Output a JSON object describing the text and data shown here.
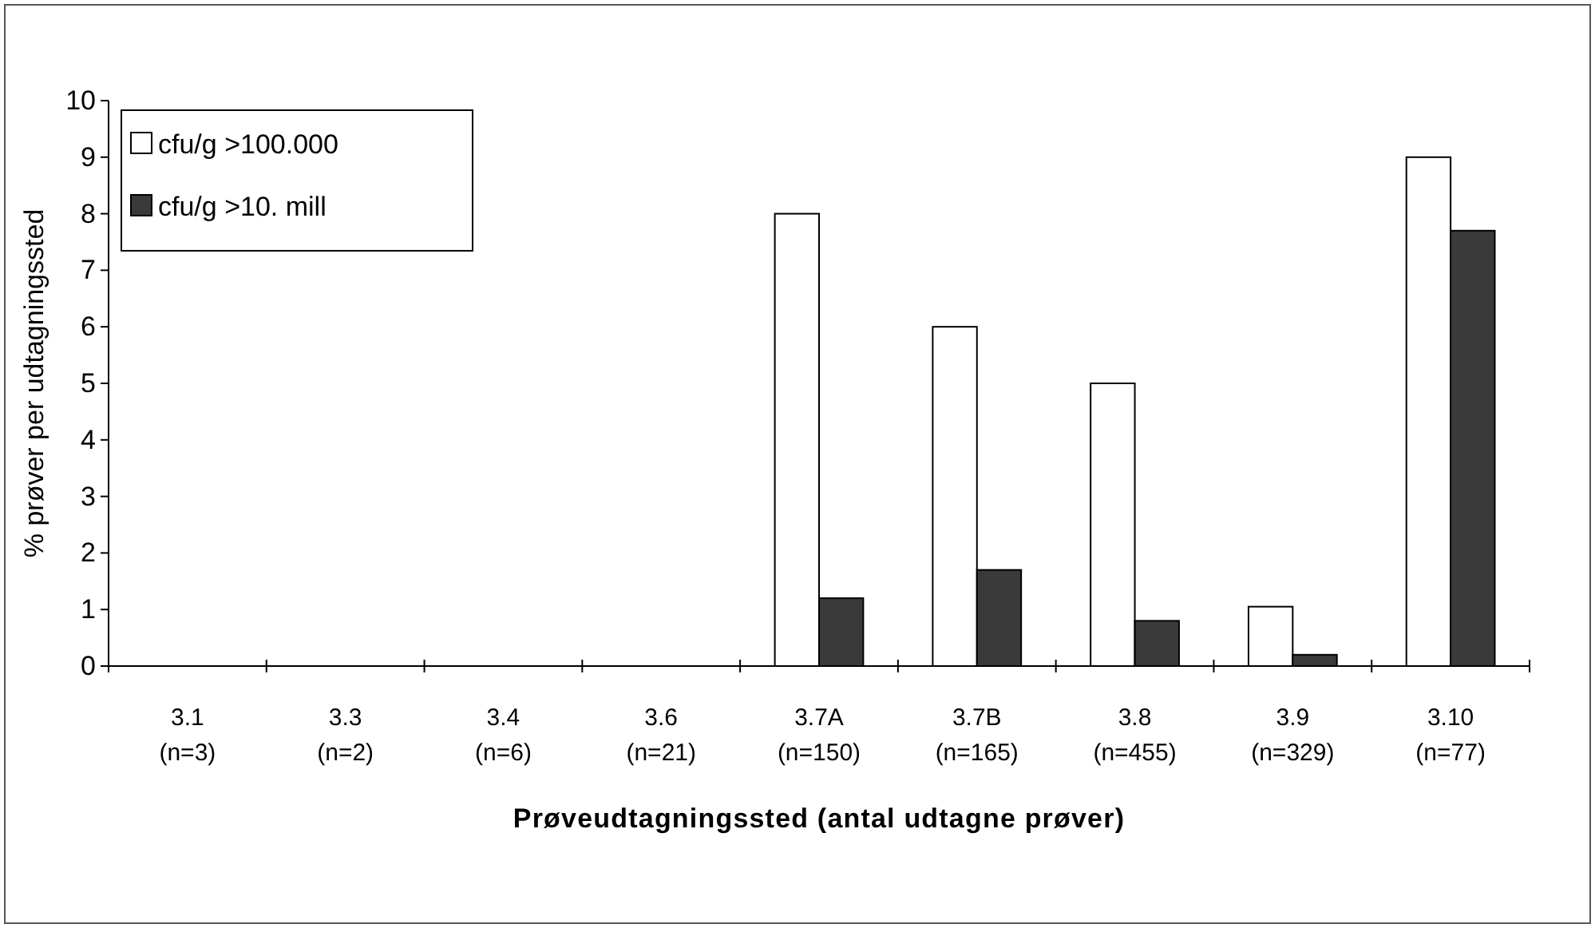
{
  "chart_data": {
    "type": "bar",
    "xlabel": "Prøveudtagningssted (antal udtagne prøver)",
    "ylabel": "% prøver per udtagningssted",
    "categories": [
      "3.1\n(n=3)",
      "3.3\n(n=2)",
      "3.4\n(n=6)",
      "3.6\n(n=21)",
      "3.7A\n(n=150)",
      "3.7B\n(n=165)",
      "3.8\n(n=455)",
      "3.9\n(n=329)",
      "3.10\n(n=77)"
    ],
    "series": [
      {
        "name": "cfu/g >100.000",
        "color": "#ffffff",
        "values": [
          0,
          0,
          0,
          0,
          8,
          6,
          5,
          1.05,
          9
        ]
      },
      {
        "name": "cfu/g >10. mill",
        "color": "#3a3a3a",
        "values": [
          0,
          0,
          0,
          0,
          1.2,
          1.7,
          0.8,
          0.2,
          7.7
        ]
      }
    ],
    "ylim": [
      0,
      10
    ],
    "yticks": [
      0,
      1,
      2,
      3,
      4,
      5,
      6,
      7,
      8,
      9,
      10
    ],
    "grid": false,
    "legend": "top left"
  }
}
